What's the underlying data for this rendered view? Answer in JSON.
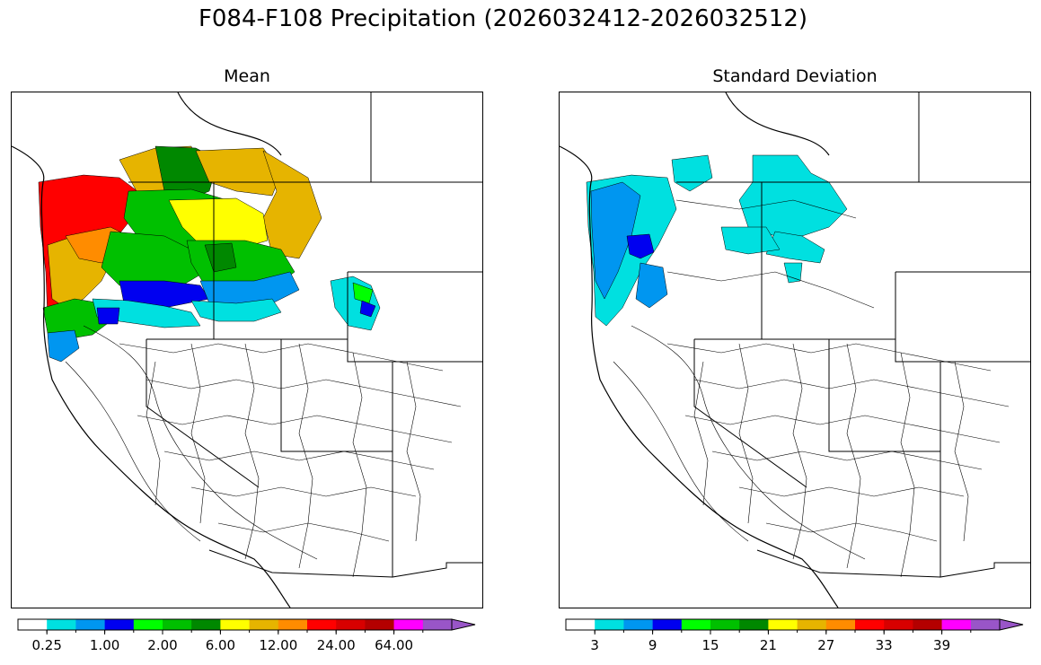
{
  "title": "F084-F108 Precipitation (2026032412-2026032512)",
  "panels": [
    {
      "id": "mean",
      "title": "Mean"
    },
    {
      "id": "sd",
      "title": "Standard Deviation"
    }
  ],
  "colormap": [
    "#ffffff",
    "#00e0e0",
    "#0096f0",
    "#0000f0",
    "#00ff00",
    "#00c000",
    "#008800",
    "#ffff00",
    "#e6b400",
    "#ff8c00",
    "#ff0000",
    "#d80000",
    "#b40000",
    "#ff00ff",
    "#9955c8"
  ],
  "colorbars": {
    "mean": {
      "tick_labels": [
        "0.25",
        "1.00",
        "2.00",
        "6.00",
        "12.00",
        "24.00",
        "64.00"
      ]
    },
    "sd": {
      "tick_labels": [
        "3",
        "9",
        "15",
        "21",
        "27",
        "33",
        "39"
      ]
    }
  }
}
